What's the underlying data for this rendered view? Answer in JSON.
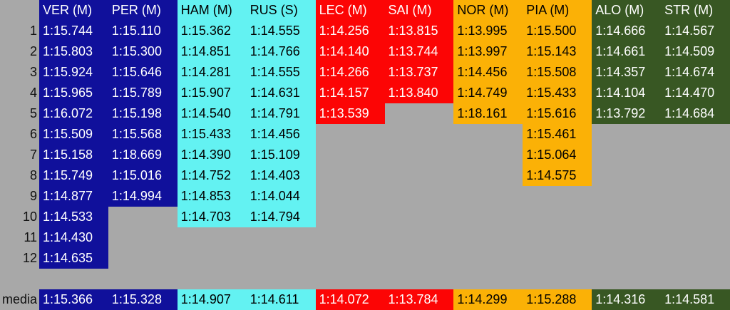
{
  "colors": {
    "sheet_background": "#A8A8A8",
    "row_label_text": "#111111"
  },
  "teams": {
    "redbull": {
      "bg": "#10109B",
      "fg": "#FFFFFF"
    },
    "mercedes": {
      "bg": "#63F2F2",
      "fg": "#000000"
    },
    "ferrari": {
      "bg": "#FC0505",
      "fg": "#FFFFFF"
    },
    "mclaren": {
      "bg": "#FBB106",
      "fg": "#000000"
    },
    "astonmartin": {
      "bg": "#385723",
      "fg": "#FFFFFF"
    }
  },
  "sheet": {
    "media_label": "media",
    "row_numbers": [
      "1",
      "2",
      "3",
      "4",
      "5",
      "6",
      "7",
      "8",
      "9",
      "10",
      "11",
      "12"
    ],
    "columns": [
      {
        "id": "ver",
        "header": "VER (M)",
        "team": "redbull",
        "values": [
          "1:15.744",
          "1:15.803",
          "1:15.924",
          "1:15.965",
          "1:16.072",
          "1:15.509",
          "1:15.158",
          "1:15.749",
          "1:14.877",
          "1:14.533",
          "1:14.430",
          "1:14.635"
        ],
        "media": "1:15.366"
      },
      {
        "id": "per",
        "header": "PER (M)",
        "team": "redbull",
        "values": [
          "1:15.110",
          "1:15.300",
          "1:15.646",
          "1:15.789",
          "1:15.198",
          "1:15.568",
          "1:18.669",
          "1:15.016",
          "1:14.994",
          null,
          null,
          null
        ],
        "media": "1:15.328"
      },
      {
        "id": "ham",
        "header": "HAM (M)",
        "team": "mercedes",
        "values": [
          "1:15.362",
          "1:14.851",
          "1:14.281",
          "1:15.907",
          "1:14.540",
          "1:15.433",
          "1:14.390",
          "1:14.752",
          "1:14.853",
          "1:14.703",
          null,
          null
        ],
        "media": "1:14.907"
      },
      {
        "id": "rus",
        "header": "RUS (S)",
        "team": "mercedes",
        "values": [
          "1:14.555",
          "1:14.766",
          "1:14.555",
          "1:14.631",
          "1:14.791",
          "1:14.456",
          "1:15.109",
          "1:14.403",
          "1:14.044",
          "1:14.794",
          null,
          null
        ],
        "media": "1:14.611"
      },
      {
        "id": "lec",
        "header": "LEC (M)",
        "team": "ferrari",
        "values": [
          "1:14.256",
          "1:14.140",
          "1:14.266",
          "1:14.157",
          "1:13.539",
          null,
          null,
          null,
          null,
          null,
          null,
          null
        ],
        "media": "1:14.072"
      },
      {
        "id": "sai",
        "header": "SAI (M)",
        "team": "ferrari",
        "values": [
          "1:13.815",
          "1:13.744",
          "1:13.737",
          "1:13.840",
          null,
          null,
          null,
          null,
          null,
          null,
          null,
          null
        ],
        "media": "1:13.784"
      },
      {
        "id": "nor",
        "header": "NOR (M)",
        "team": "mclaren",
        "values": [
          "1:13.995",
          "1:13.997",
          "1:14.456",
          "1:14.749",
          "1:18.161",
          null,
          null,
          null,
          null,
          null,
          null,
          null
        ],
        "media": "1:14.299"
      },
      {
        "id": "pia",
        "header": "PIA (M)",
        "team": "mclaren",
        "values": [
          "1:15.500",
          "1:15.143",
          "1:15.508",
          "1:15.433",
          "1:15.616",
          "1:15.461",
          "1:15.064",
          "1:14.575",
          null,
          null,
          null,
          null
        ],
        "media": "1:15.288"
      },
      {
        "id": "alo",
        "header": "ALO (M)",
        "team": "astonmartin",
        "values": [
          "1:14.666",
          "1:14.661",
          "1:14.357",
          "1:14.104",
          "1:13.792",
          null,
          null,
          null,
          null,
          null,
          null,
          null
        ],
        "media": "1:14.316"
      },
      {
        "id": "str",
        "header": "STR (M)",
        "team": "astonmartin",
        "values": [
          "1:14.567",
          "1:14.509",
          "1:14.674",
          "1:14.470",
          "1:14.684",
          null,
          null,
          null,
          null,
          null,
          null,
          null
        ],
        "media": "1:14.581"
      }
    ]
  }
}
